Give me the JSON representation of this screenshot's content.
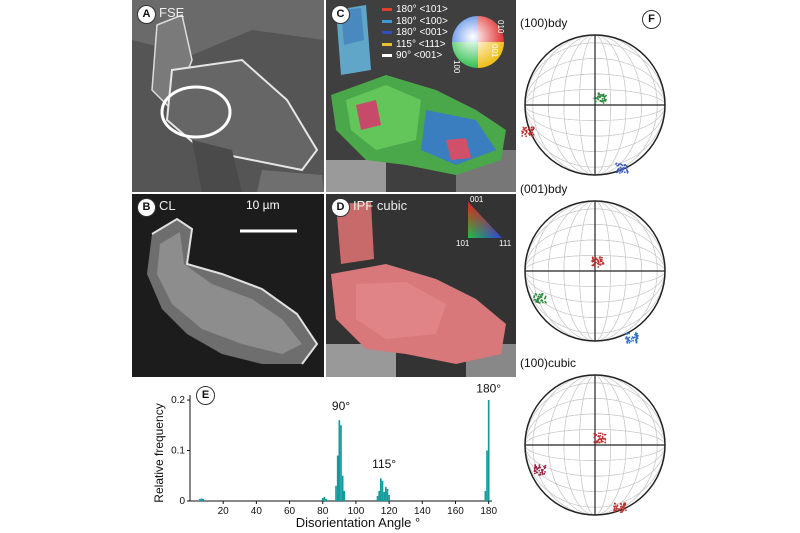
{
  "panels": {
    "A": {
      "letter": "A",
      "title": "FSE"
    },
    "B": {
      "letter": "B",
      "title": "CL",
      "scalebar": "10 µm"
    },
    "C": {
      "letter": "C",
      "legend": [
        {
          "text": "180° <101>",
          "color": "#e0402a"
        },
        {
          "text": "180° <100>",
          "color": "#3a9bd6"
        },
        {
          "text": "180° <001>",
          "color": "#3050c0"
        },
        {
          "text": "115° <111>",
          "color": "#e8c030"
        },
        {
          "text": "90° <001>",
          "color": "#ffffff"
        }
      ],
      "wheel_labels": [
        "010",
        "001",
        "100"
      ]
    },
    "D": {
      "letter": "D",
      "title": "IPF cubic",
      "triangle_labels": [
        "001",
        "101",
        "111"
      ]
    },
    "E": {
      "letter": "E"
    },
    "F": {
      "letter": "F",
      "pole_figures": [
        {
          "title": "(100)bdy"
        },
        {
          "title": "(001)bdy"
        },
        {
          "title": "(100)cubic"
        }
      ]
    }
  },
  "chart_data": {
    "type": "bar",
    "xlabel": "Disorientation Angle °",
    "ylabel": "Relative frequency",
    "xlim": [
      0,
      182
    ],
    "ylim": [
      0,
      0.21
    ],
    "xticks": [
      20,
      40,
      60,
      80,
      100,
      120,
      140,
      160,
      180
    ],
    "yticks": [
      0,
      0.1,
      0.2
    ],
    "ytick_labels": [
      "0",
      "0.1",
      "0.2"
    ],
    "color": "#139a9c",
    "bin_width": 1,
    "x": [
      6,
      7,
      8,
      80,
      81,
      82,
      88,
      89,
      90,
      91,
      92,
      93,
      113,
      114,
      115,
      116,
      117,
      118,
      119,
      120,
      178,
      179,
      180
    ],
    "values": [
      0.004,
      0.005,
      0.004,
      0.006,
      0.008,
      0.004,
      0.03,
      0.09,
      0.16,
      0.15,
      0.05,
      0.02,
      0.01,
      0.02,
      0.045,
      0.04,
      0.018,
      0.028,
      0.024,
      0.012,
      0.02,
      0.1,
      0.2
    ],
    "annotations": [
      {
        "text": "90°",
        "x": 91,
        "y": 0.18
      },
      {
        "text": "115°",
        "x": 117,
        "y": 0.065
      },
      {
        "text": "180°",
        "x": 180,
        "y": 0.215
      }
    ]
  }
}
